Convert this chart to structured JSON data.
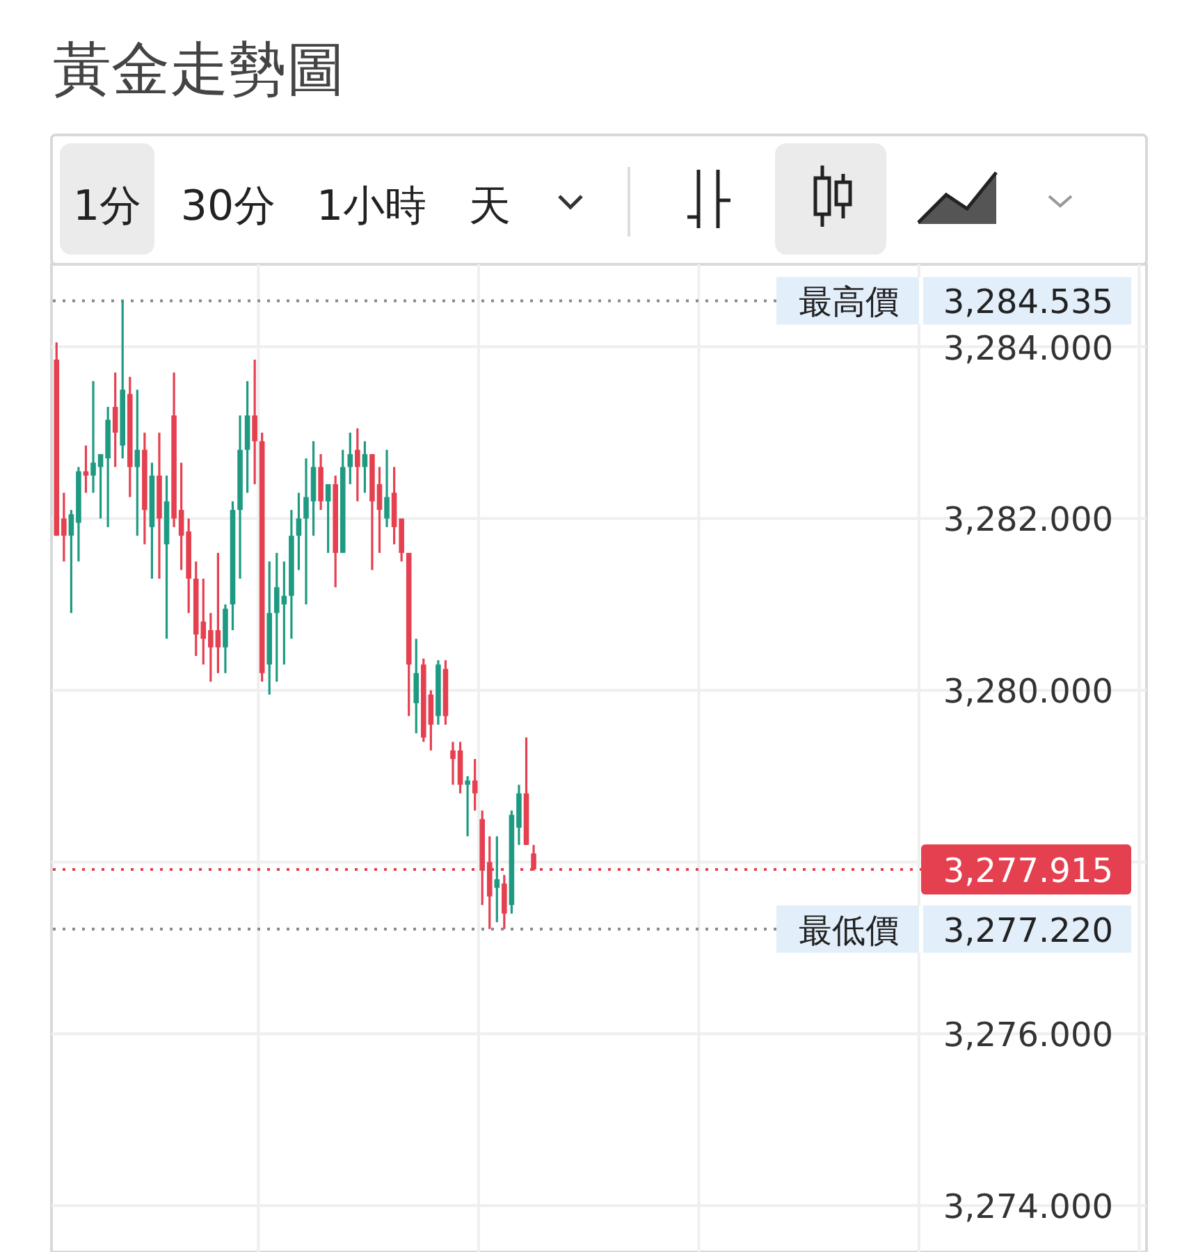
{
  "chart_data": {
    "type": "candlestick",
    "title": "黃金走勢圖",
    "annotations": [
      "1分",
      "30分",
      "1小時",
      "天",
      "3,284.535",
      "3,277.915",
      "3,277.220"
    ],
    "categories": [
      null,
      null,
      null,
      null,
      null,
      null,
      null,
      null,
      null,
      null,
      null,
      null,
      null,
      null,
      null,
      null,
      null,
      null,
      null,
      null,
      null,
      null,
      null,
      null,
      null,
      null,
      null,
      null,
      null,
      null,
      null,
      null,
      null,
      null,
      null,
      null,
      null,
      null,
      null,
      null,
      null,
      null,
      null,
      null,
      null,
      null,
      null,
      null,
      null,
      null,
      null,
      null,
      null,
      null,
      null,
      null,
      null,
      null,
      null,
      null,
      null,
      null,
      null,
      null,
      null,
      null,
      null,
      null,
      null,
      null,
      null,
      null,
      null,
      null,
      null,
      null,
      null,
      null,
      null,
      null,
      null,
      null,
      null,
      null,
      null,
      null,
      null,
      null,
      null,
      null,
      null,
      null,
      null,
      null,
      null,
      null,
      null,
      null,
      null,
      null,
      null,
      null,
      null,
      null,
      null,
      null,
      null,
      null,
      null,
      null,
      null,
      null,
      null,
      null,
      null,
      null,
      null,
      null,
      null,
      null,
      null,
      null,
      null,
      null,
      null,
      null,
      null,
      null,
      null,
      null,
      null,
      null,
      null,
      null,
      null,
      null,
      null,
      null,
      null,
      null,
      null,
      null,
      null,
      null,
      null,
      null,
      null,
      null,
      null
    ],
    "ohlc": [
      [
        3283.85,
        3284.05,
        3281.8,
        3281.8
      ],
      [
        3282.0,
        3282.3,
        3281.5,
        3281.8
      ],
      [
        3281.8,
        3282.1,
        3280.9,
        3282.05
      ],
      [
        3281.95,
        3282.6,
        3281.5,
        3282.55
      ],
      [
        3282.55,
        3282.85,
        3282.3,
        3282.5
      ],
      [
        3282.5,
        3283.6,
        3282.3,
        3282.65
      ],
      [
        3282.6,
        3282.75,
        3282.0,
        3282.75
      ],
      [
        3282.7,
        3283.3,
        3281.9,
        3283.15
      ],
      [
        3283.3,
        3283.7,
        3282.6,
        3283.0
      ],
      [
        3282.85,
        3284.535,
        3282.7,
        3283.5
      ],
      [
        3283.45,
        3283.65,
        3282.25,
        3282.6
      ],
      [
        3282.6,
        3283.5,
        3281.8,
        3282.8
      ],
      [
        3282.8,
        3283.0,
        3281.7,
        3282.1
      ],
      [
        3281.9,
        3282.65,
        3281.3,
        3282.5
      ],
      [
        3282.5,
        3283.0,
        3281.3,
        3282.0
      ],
      [
        3281.7,
        3282.5,
        3280.6,
        3282.2
      ],
      [
        3283.2,
        3283.7,
        3281.9,
        3282.0
      ],
      [
        3282.1,
        3282.65,
        3281.4,
        3281.8
      ],
      [
        3281.85,
        3282.0,
        3280.9,
        3281.3
      ],
      [
        3281.3,
        3281.5,
        3280.4,
        3280.65
      ],
      [
        3280.8,
        3281.3,
        3280.3,
        3280.6
      ],
      [
        3280.7,
        3280.9,
        3280.1,
        3280.5
      ],
      [
        3280.7,
        3281.6,
        3280.2,
        3280.5
      ],
      [
        3280.5,
        3281.0,
        3280.2,
        3280.95
      ],
      [
        3281.0,
        3282.2,
        3280.7,
        3282.1
      ],
      [
        3282.1,
        3283.2,
        3281.3,
        3282.8
      ],
      [
        3282.8,
        3283.6,
        3282.3,
        3283.2
      ],
      [
        3283.2,
        3283.85,
        3282.4,
        3282.9
      ],
      [
        3282.9,
        3283.0,
        3280.1,
        3280.2
      ],
      [
        3280.3,
        3281.5,
        3279.95,
        3280.9
      ],
      [
        3280.9,
        3281.6,
        3280.1,
        3281.2
      ],
      [
        3281.0,
        3281.5,
        3280.3,
        3281.1
      ],
      [
        3281.1,
        3282.1,
        3280.6,
        3281.8
      ],
      [
        3281.8,
        3282.3,
        3281.4,
        3282.0
      ],
      [
        3282.0,
        3282.7,
        3281.0,
        3282.25
      ],
      [
        3282.2,
        3282.9,
        3281.8,
        3282.6
      ],
      [
        3282.6,
        3282.75,
        3282.1,
        3282.2
      ],
      [
        3282.2,
        3282.4,
        3281.6,
        3282.4
      ],
      [
        3282.4,
        3282.5,
        3281.2,
        3281.6
      ],
      [
        3281.6,
        3282.8,
        3281.6,
        3282.6
      ],
      [
        3282.6,
        3283.0,
        3282.4,
        3282.75
      ],
      [
        3282.8,
        3283.05,
        3282.2,
        3282.6
      ],
      [
        3282.6,
        3282.9,
        3282.3,
        3282.75
      ],
      [
        3282.75,
        3282.75,
        3281.4,
        3282.2
      ],
      [
        3282.4,
        3282.6,
        3281.6,
        3282.1
      ],
      [
        3282.0,
        3282.8,
        3281.9,
        3282.25
      ],
      [
        3282.3,
        3282.6,
        3281.7,
        3281.9
      ],
      [
        3282.0,
        3282.0,
        3281.5,
        3281.6
      ],
      [
        3281.6,
        3281.6,
        3279.7,
        3280.3
      ],
      [
        3279.85,
        3280.6,
        3279.5,
        3280.2
      ],
      [
        3280.3,
        3280.37,
        3279.4,
        3279.45
      ],
      [
        3279.95,
        3280.0,
        3279.3,
        3279.6
      ],
      [
        3279.7,
        3280.35,
        3279.6,
        3280.3
      ],
      [
        3280.25,
        3280.35,
        3279.6,
        3279.7
      ],
      [
        3279.3,
        3279.4,
        3278.9,
        3279.2
      ],
      [
        3279.3,
        3279.4,
        3278.8,
        3278.9
      ],
      [
        3278.9,
        3279.0,
        3278.3,
        3278.95
      ],
      [
        3278.95,
        3279.2,
        3278.6,
        3278.8
      ],
      [
        3278.5,
        3278.6,
        3277.5,
        3277.9
      ],
      [
        3278.0,
        3278.3,
        3277.22,
        3277.6
      ],
      [
        3277.7,
        3278.3,
        3277.3,
        3277.8
      ],
      [
        3277.75,
        3277.85,
        3277.22,
        3277.4
      ],
      [
        3277.5,
        3278.6,
        3277.4,
        3278.55
      ],
      [
        3278.4,
        3278.9,
        3278.2,
        3278.8
      ],
      [
        3278.8,
        3279.45,
        3278.2,
        3278.2
      ],
      [
        3278.1,
        3278.2,
        3277.9,
        3277.915
      ],
      null,
      null,
      null,
      null,
      null,
      null,
      null,
      null,
      null,
      null,
      null,
      null,
      null,
      null,
      null,
      null,
      null,
      null,
      null,
      null,
      null,
      null,
      null,
      null,
      null,
      null,
      null,
      null,
      null,
      null,
      null,
      null,
      null,
      null,
      null,
      null,
      null,
      null,
      null,
      null,
      null,
      null,
      null,
      null,
      null,
      null,
      null,
      null,
      null,
      null,
      null,
      null,
      null,
      null,
      null,
      null,
      null,
      null,
      null,
      null,
      null,
      null,
      null,
      null,
      null,
      null,
      null,
      null,
      null,
      null,
      null,
      null,
      null,
      null,
      null,
      null,
      null,
      null,
      null,
      null,
      null,
      null,
      null
    ],
    "colors": [
      "#e5404f",
      "#e5404f",
      "#1f9a82",
      "#1f9a82",
      "#e5404f",
      "#1f9a82",
      "#1f9a82",
      "#1f9a82",
      "#e5404f",
      "#1f9a82",
      "#e5404f",
      "#1f9a82",
      "#e5404f",
      "#1f9a82",
      "#e5404f",
      "#1f9a82",
      "#e5404f",
      "#e5404f",
      "#e5404f",
      "#e5404f",
      "#e5404f",
      "#e5404f",
      "#e5404f",
      "#1f9a82",
      "#1f9a82",
      "#1f9a82",
      "#1f9a82",
      "#e5404f",
      "#e5404f",
      "#1f9a82",
      "#1f9a82",
      "#1f9a82",
      "#1f9a82",
      "#1f9a82",
      "#1f9a82",
      "#1f9a82",
      "#e5404f",
      "#1f9a82",
      "#e5404f",
      "#1f9a82",
      "#1f9a82",
      "#e5404f",
      "#1f9a82",
      "#e5404f",
      "#e5404f",
      "#1f9a82",
      "#e5404f",
      "#e5404f",
      "#e5404f",
      "#1f9a82",
      "#e5404f",
      "#e5404f",
      "#1f9a82",
      "#e5404f",
      "#e5404f",
      "#e5404f",
      "#1f9a82",
      "#e5404f",
      "#e5404f",
      "#e5404f",
      "#1f9a82",
      "#e5404f",
      "#1f9a82",
      "#1f9a82",
      "#e5404f",
      "#e5404f",
      null,
      null,
      null,
      null,
      null,
      null,
      null,
      null,
      null,
      null,
      null,
      null,
      null,
      null,
      null,
      null,
      null,
      null,
      null,
      null,
      null,
      null,
      null,
      null,
      null,
      null,
      null,
      null,
      null,
      null,
      null,
      null,
      null,
      null,
      null,
      null,
      null,
      null,
      null,
      null,
      null,
      null,
      null,
      null,
      null,
      null,
      null,
      null,
      null,
      null,
      null,
      null,
      null,
      null,
      null,
      null,
      null,
      null,
      null,
      null,
      null,
      null,
      null,
      null,
      null,
      null,
      null,
      null,
      null,
      null,
      null,
      null,
      null,
      null,
      null,
      null,
      null,
      null,
      null,
      null,
      null,
      null,
      null
    ],
    "ylim": [
      3273.46,
      3284.96
    ],
    "yticks": [
      {
        "value": 3274,
        "label": "3,274.000"
      },
      {
        "value": 3276,
        "label": "3,276.000"
      },
      {
        "value": 3278,
        "label": null
      },
      {
        "value": 3280,
        "label": "3,280.000"
      },
      {
        "value": 3282,
        "label": "3,282.000"
      },
      {
        "value": 3284,
        "label": "3,284.000"
      }
    ],
    "grid": true,
    "ref_lines": [
      {
        "axis": "y",
        "value": 3284.535,
        "label": "最高價",
        "color": "#888888",
        "line_style": "dotted"
      },
      {
        "axis": "y",
        "value": 3277.915,
        "label": null,
        "color": "#e5404f",
        "line_style": "dotted"
      },
      {
        "axis": "y",
        "value": 3277.22,
        "label": "最低價",
        "color": "#888888",
        "line_style": "dotted"
      }
    ]
  }
}
